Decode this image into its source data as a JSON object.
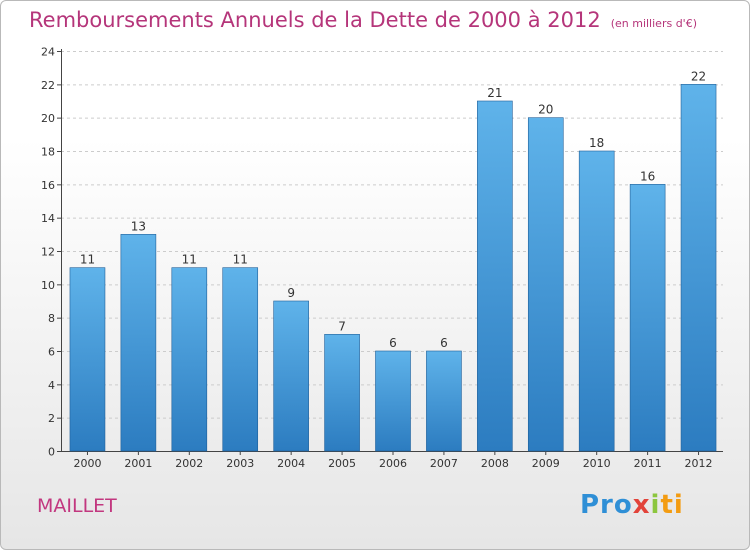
{
  "title": "Remboursements Annuels de la Dette de 2000 à 2012",
  "unit": "(en milliers d'€)",
  "commune": "MAILLET",
  "logo": {
    "p1": "Pro",
    "p2": "x",
    "p3": "i",
    "p4": "ti"
  },
  "colors": {
    "title": "#b5357a",
    "bar_top": "#5fb3ea",
    "bar_bottom": "#2c7cc0",
    "grid": "#cccccc"
  },
  "chart_data": {
    "type": "bar",
    "title": "Remboursements Annuels de la Dette de 2000 à 2012",
    "subtitle": "(en milliers d'€)",
    "categories": [
      "2000",
      "2001",
      "2002",
      "2003",
      "2004",
      "2005",
      "2006",
      "2007",
      "2008",
      "2009",
      "2010",
      "2011",
      "2012"
    ],
    "values": [
      11,
      13,
      11,
      11,
      9,
      7,
      6,
      6,
      21,
      20,
      18,
      16,
      22
    ],
    "ylim": [
      0,
      24
    ],
    "yticks": [
      0,
      2,
      4,
      6,
      8,
      10,
      12,
      14,
      16,
      18,
      20,
      22,
      24
    ],
    "grid": true,
    "data_labels": true
  }
}
